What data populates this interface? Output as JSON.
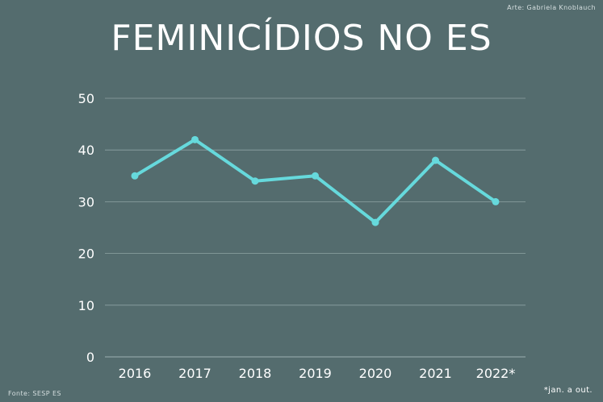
{
  "credit": "Arte: Gabriela Knoblauch",
  "source": "Fonte: SESP ES",
  "note": "*jan. a out.",
  "colors": {
    "background": "#546c6e",
    "line": "#66d9dc",
    "grid": "#8ea3a4"
  },
  "chart_data": {
    "type": "line",
    "title": "FEMINICÍDIOS NO ES",
    "xlabel": "",
    "ylabel": "",
    "categories": [
      "2016",
      "2017",
      "2018",
      "2019",
      "2020",
      "2021",
      "2022*"
    ],
    "series": [
      {
        "values": [
          35,
          42,
          34,
          35,
          26,
          38,
          30
        ]
      }
    ],
    "ylim": [
      0,
      50
    ],
    "yticks": [
      0,
      10,
      20,
      30,
      40,
      50
    ],
    "grid": true,
    "legend": "none"
  }
}
